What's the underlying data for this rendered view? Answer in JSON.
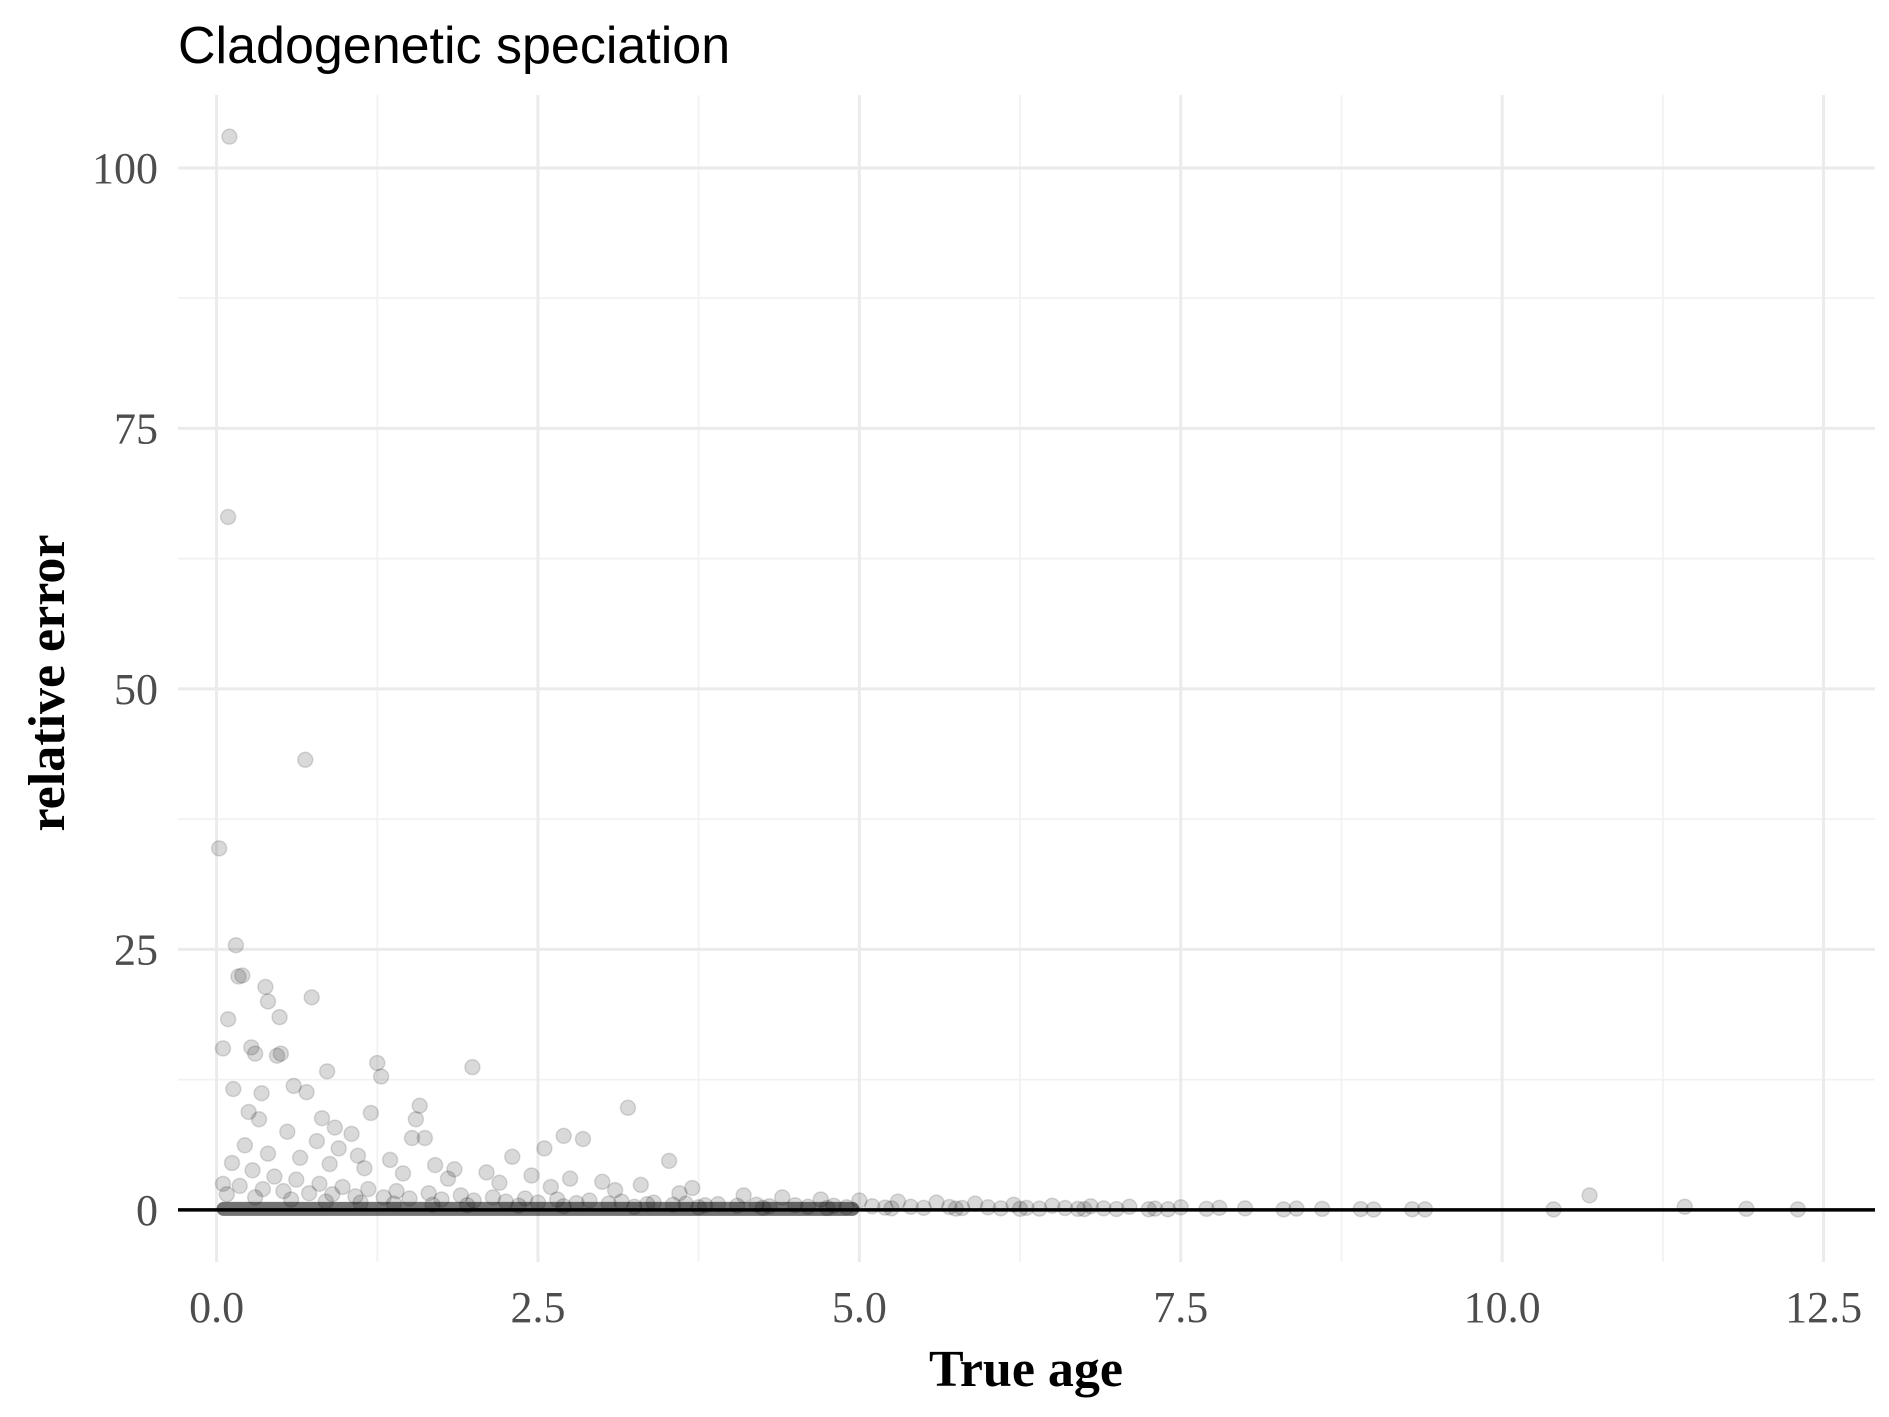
{
  "chart_data": {
    "type": "scatter",
    "title": "Cladogenetic speciation",
    "xlabel": "True age",
    "ylabel": "relative error",
    "xlim": [
      -0.3,
      12.9
    ],
    "ylim": [
      -5,
      107
    ],
    "x_ticks": [
      0.0,
      2.5,
      5.0,
      7.5,
      10.0,
      12.5
    ],
    "x_tick_labels": [
      "0.0",
      "2.5",
      "5.0",
      "7.5",
      "10.0",
      "12.5"
    ],
    "y_ticks": [
      0,
      25,
      50,
      75,
      100
    ],
    "y_tick_labels": [
      "0",
      "25",
      "50",
      "75",
      "100"
    ],
    "grid": true,
    "reference_line": {
      "y": 0,
      "color": "#000000"
    },
    "point_color": "#000000",
    "point_alpha": 0.15,
    "series": [
      {
        "x": [
          0.1,
          0.09,
          0.69,
          0.02,
          0.15,
          0.2,
          0.17,
          0.38,
          0.4,
          0.74,
          0.49,
          0.05,
          0.09,
          1.25,
          1.28,
          1.99,
          0.5,
          0.47,
          0.86,
          0.27,
          0.3,
          0.13,
          1.58,
          3.2,
          1.2,
          1.52,
          1.62,
          1.55,
          0.35,
          0.7,
          0.6,
          0.82,
          0.92,
          1.05,
          2.7,
          2.85,
          3.52,
          2.55,
          2.3,
          0.25,
          0.33,
          0.55,
          0.78,
          0.95,
          1.1,
          1.35,
          1.7,
          1.85,
          2.1,
          2.45,
          2.75,
          3.0,
          3.3,
          3.7,
          0.22,
          0.4,
          0.65,
          0.88,
          1.15,
          1.45,
          1.8,
          2.2,
          2.6,
          3.1,
          3.6,
          4.1,
          4.4,
          4.7,
          5.0,
          5.3,
          5.6,
          5.9,
          6.2,
          6.5,
          6.8,
          7.1,
          7.5,
          7.8,
          8.0,
          8.4,
          8.6,
          8.9,
          9.3,
          9.4,
          10.4,
          10.68,
          11.42,
          11.9,
          12.3,
          0.12,
          0.28,
          0.45,
          0.62,
          0.8,
          0.98,
          1.18,
          1.4,
          1.65,
          1.9,
          2.15,
          2.4,
          2.65,
          2.9,
          3.15,
          3.4,
          3.65,
          3.9,
          4.2,
          4.5,
          4.8,
          5.1,
          5.4,
          5.7,
          6.0,
          6.3,
          6.6,
          6.9,
          7.3,
          7.7,
          0.05,
          0.18,
          0.36,
          0.52,
          0.72,
          0.9,
          1.08,
          1.3,
          1.5,
          1.75,
          2.0,
          2.25,
          2.5,
          2.8,
          3.05,
          3.35,
          3.55,
          3.8,
          4.05,
          4.3,
          4.6,
          4.9,
          5.2,
          5.5,
          5.8,
          6.1,
          6.4,
          6.7,
          7.0,
          7.25,
          0.08,
          0.3,
          0.58,
          0.85,
          1.12,
          1.38,
          1.68,
          1.95,
          2.35,
          2.7,
          3.25,
          3.75,
          4.25,
          4.75,
          5.25,
          5.75,
          6.25,
          6.75,
          7.4,
          8.3,
          9.0
        ],
        "y": [
          103,
          66.5,
          43.2,
          34.7,
          25.4,
          22.5,
          22.4,
          21.4,
          20,
          20.4,
          18.5,
          15.5,
          18.3,
          14.1,
          12.8,
          13.7,
          15,
          14.8,
          13.3,
          15.6,
          15,
          11.6,
          10,
          9.8,
          9.3,
          6.9,
          6.9,
          8.7,
          11.2,
          11.3,
          11.9,
          8.8,
          7.9,
          7.3,
          7.1,
          6.8,
          4.7,
          5.9,
          5.1,
          9.4,
          8.7,
          7.5,
          6.6,
          5.9,
          5.2,
          4.8,
          4.3,
          3.9,
          3.6,
          3.3,
          3.0,
          2.7,
          2.4,
          2.1,
          6.2,
          5.4,
          5.0,
          4.4,
          4.0,
          3.5,
          3.0,
          2.6,
          2.2,
          1.9,
          1.6,
          1.4,
          1.2,
          1.0,
          0.9,
          0.8,
          0.7,
          0.6,
          0.5,
          0.4,
          0.35,
          0.3,
          0.25,
          0.2,
          0.15,
          0.12,
          0.1,
          0.08,
          0.06,
          0.05,
          0.05,
          1.4,
          0.3,
          0.1,
          0.05,
          4.5,
          3.8,
          3.2,
          2.9,
          2.5,
          2.2,
          2.0,
          1.8,
          1.6,
          1.4,
          1.2,
          1.1,
          1.0,
          0.9,
          0.8,
          0.7,
          0.6,
          0.55,
          0.5,
          0.45,
          0.4,
          0.35,
          0.3,
          0.28,
          0.25,
          0.2,
          0.18,
          0.15,
          0.12,
          0.1,
          2.5,
          2.3,
          2.0,
          1.8,
          1.6,
          1.5,
          1.3,
          1.2,
          1.1,
          1.0,
          0.9,
          0.8,
          0.7,
          0.65,
          0.6,
          0.55,
          0.5,
          0.45,
          0.4,
          0.35,
          0.3,
          0.25,
          0.22,
          0.2,
          0.18,
          0.15,
          0.12,
          0.1,
          0.08,
          0.06,
          1.5,
          1.2,
          1.0,
          0.8,
          0.7,
          0.6,
          0.5,
          0.45,
          0.4,
          0.35,
          0.3,
          0.25,
          0.2,
          0.18,
          0.15,
          0.12,
          0.1,
          0.08,
          0.06,
          0.05,
          0.04
        ]
      }
    ]
  }
}
